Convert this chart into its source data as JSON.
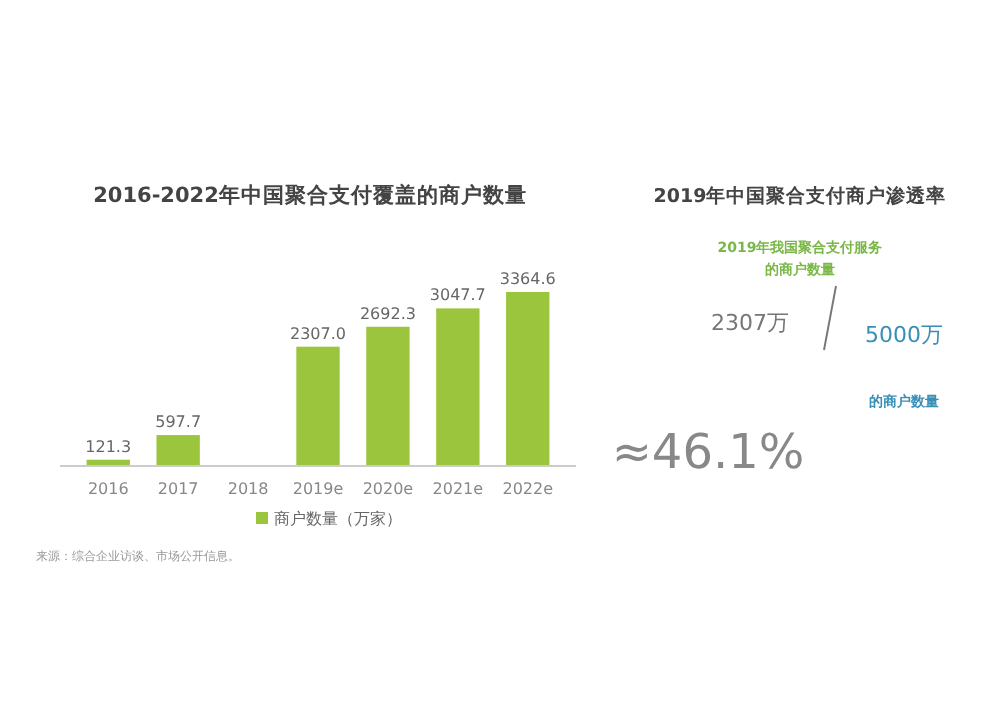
{
  "chart_data": [
    {
      "type": "bar",
      "title": "2016-2022年中国聚合支付覆盖的商户数量",
      "categories": [
        "2016",
        "2017",
        "2018",
        "2019e",
        "2020e",
        "2021e",
        "2022e"
      ],
      "relative": false,
      "series": [
        {
          "name": "商户数量（万家）",
          "color": "#9bc53d",
          "values": [
            121.3,
            597.7,
            null,
            2307.0,
            2692.3,
            3047.7,
            3364.6
          ],
          "value_labels": [
            "121.3",
            "597.7",
            null,
            "2307.0",
            "2692.3",
            "3047.7",
            "3364.6"
          ]
        }
      ],
      "legend": "bottom",
      "annotations": [
        "来源：综合企业访谈、市场公开信息。"
      ]
    },
    {
      "type": "other",
      "title": "2019年中国聚合支付商户渗透率",
      "annotations": [
        "2019年我国聚合支付服务",
        "的商户数量",
        "2307万",
        "5000万",
        "的商户数量",
        "≈46.1%"
      ]
    }
  ]
}
